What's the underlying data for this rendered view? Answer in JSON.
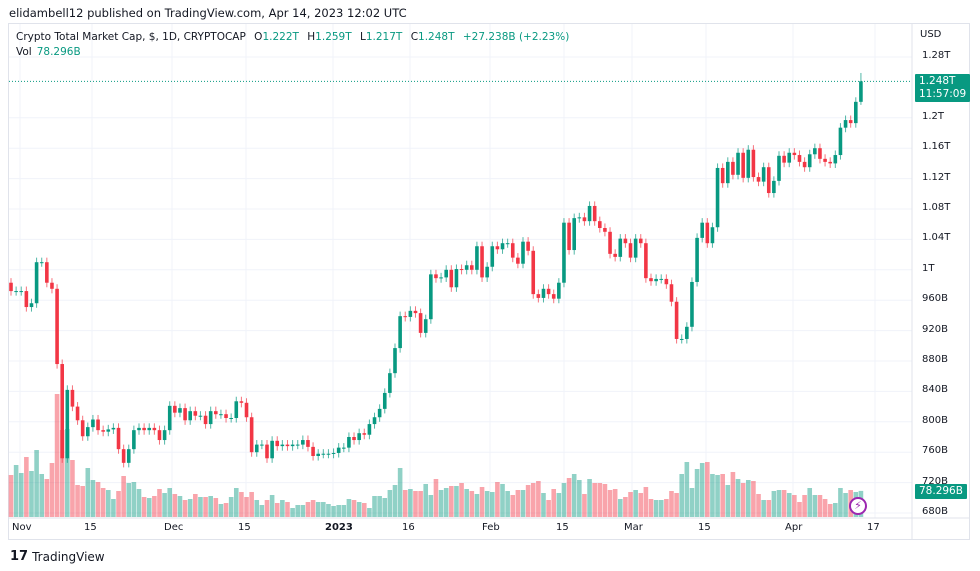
{
  "published": "elidambell12 published on TradingView.com, Apr 14, 2023 12:02 UTC",
  "legend": {
    "symbol": "Crypto Total Market Cap, $, 1D, CRYPTOCAP",
    "o_label": "O",
    "o": "1.222T",
    "h_label": "H",
    "h": "1.259T",
    "l_label": "L",
    "l": "1.217T",
    "c_label": "C",
    "c": "1.248T",
    "change": "+27.238B (+2.23%)",
    "vol_label": "Vol",
    "vol": "78.296B"
  },
  "price_axis": {
    "currency": "USD",
    "ticks": [
      "1.28T",
      "1.2T",
      "1.16T",
      "1.12T",
      "1.08T",
      "1.04T",
      "1T",
      "960B",
      "920B",
      "880B",
      "840B",
      "800B",
      "760B",
      "720B",
      "680B"
    ]
  },
  "last_price": {
    "value": "1.248T",
    "countdown": "11:57:09"
  },
  "last_volume": "78.296B",
  "time_axis": [
    "Nov",
    "15",
    "Dec",
    "15",
    "2023",
    "16",
    "Feb",
    "15",
    "Mar",
    "15",
    "Apr",
    "17"
  ],
  "footer": {
    "brand": "TradingView"
  },
  "colors": {
    "up": "#089981",
    "down": "#F23645"
  },
  "chart_data": {
    "type": "candlestick",
    "unit": "B USD",
    "first_open": 983,
    "close": [
      972,
      972,
      972,
      951,
      956,
      1010,
      1010,
      983,
      975,
      876,
      752,
      842,
      820,
      802,
      781,
      793,
      803,
      789,
      787,
      790,
      792,
      764,
      746,
      764,
      789,
      792,
      789,
      792,
      789,
      776,
      789,
      821,
      812,
      818,
      802,
      814,
      808,
      808,
      797,
      814,
      810,
      810,
      805,
      805,
      827,
      825,
      806,
      760,
      770,
      770,
      752,
      775,
      768,
      770,
      768,
      770,
      770,
      776,
      767,
      755,
      758,
      758,
      758,
      759,
      766,
      766,
      780,
      776,
      785,
      783,
      797,
      806,
      817,
      838,
      864,
      897,
      939,
      938,
      946,
      943,
      917,
      935,
      994,
      989,
      990,
      1000,
      977,
      1001,
      1000,
      1006,
      1000,
      1031,
      990,
      1004,
      1031,
      1027,
      1035,
      1035,
      1016,
      1008,
      1037,
      1025,
      968,
      963,
      975,
      968,
      962,
      983,
      1062,
      1026,
      1068,
      1069,
      1064,
      1084,
      1064,
      1055,
      1050,
      1021,
      1017,
      1041,
      1035,
      1016,
      1041,
      1035,
      989,
      985,
      988,
      988,
      981,
      958,
      909,
      909,
      925,
      984,
      1042,
      1062,
      1035,
      1056,
      1134,
      1114,
      1142,
      1125,
      1154,
      1121,
      1158,
      1122,
      1116,
      1135,
      1101,
      1117,
      1150,
      1141,
      1154,
      1151,
      1142,
      1135,
      1152,
      1160,
      1146,
      1142,
      1140,
      1151,
      1187,
      1197,
      1193,
      1221,
      1248
    ],
    "volume": [
      126,
      156,
      132,
      180,
      138,
      201,
      129,
      114,
      162,
      369,
      261,
      264,
      171,
      96,
      93,
      147,
      111,
      105,
      87,
      81,
      54,
      78,
      123,
      102,
      105,
      84,
      60,
      57,
      63,
      84,
      72,
      87,
      69,
      63,
      51,
      54,
      69,
      60,
      60,
      63,
      57,
      39,
      42,
      60,
      87,
      75,
      60,
      75,
      51,
      36,
      51,
      66,
      42,
      51,
      45,
      27,
      36,
      36,
      45,
      51,
      45,
      45,
      39,
      33,
      36,
      36,
      54,
      51,
      45,
      42,
      27,
      63,
      63,
      57,
      81,
      96,
      147,
      81,
      84,
      78,
      78,
      99,
      66,
      114,
      81,
      87,
      93,
      93,
      102,
      84,
      78,
      69,
      90,
      78,
      75,
      105,
      99,
      78,
      66,
      81,
      81,
      96,
      102,
      108,
      72,
      51,
      84,
      72,
      102,
      117,
      129,
      111,
      69,
      114,
      102,
      102,
      99,
      81,
      84,
      54,
      60,
      75,
      81,
      72,
      90,
      54,
      51,
      51,
      54,
      78,
      72,
      129,
      165,
      87,
      144,
      162,
      165,
      129,
      126,
      129,
      96,
      135,
      114,
      102,
      111,
      108,
      69,
      51,
      51,
      78,
      81,
      81,
      72,
      66,
      45,
      66,
      87,
      66,
      66,
      54,
      39,
      42,
      87,
      72,
      81,
      75,
      78.296
    ],
    "ylim": [
      680,
      1280
    ],
    "last_high": 1259,
    "last_low": 1217
  }
}
